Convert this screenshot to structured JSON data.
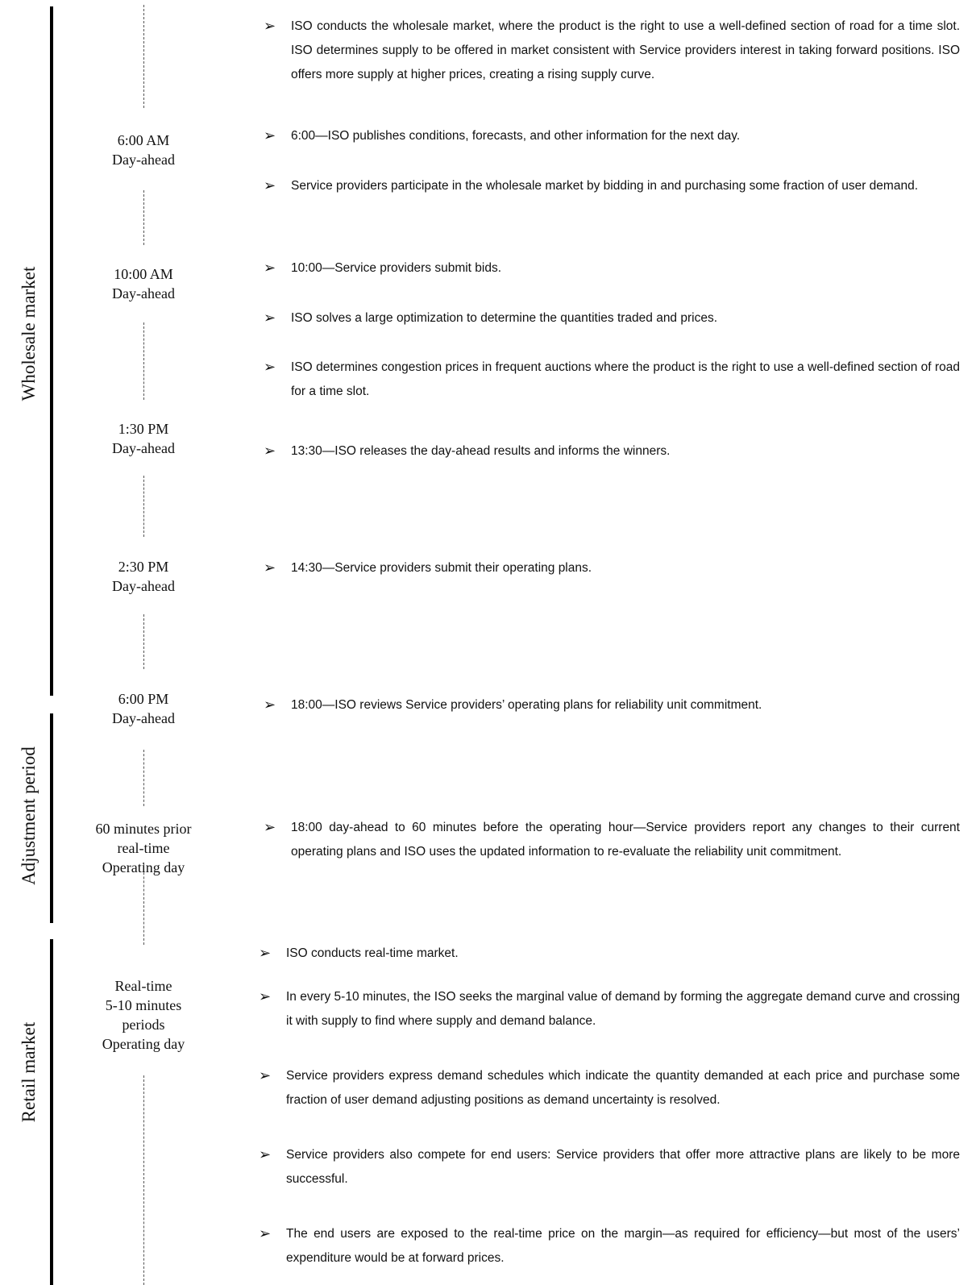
{
  "phases": [
    {
      "label": "Wholesale market"
    },
    {
      "label": "Adjustment period"
    },
    {
      "label": "Retail market"
    }
  ],
  "times": [
    {
      "lines": [
        "6:00 AM",
        "Day-ahead"
      ]
    },
    {
      "lines": [
        "10:00 AM",
        "Day-ahead"
      ]
    },
    {
      "lines": [
        "1:30 PM",
        "Day-ahead"
      ]
    },
    {
      "lines": [
        "2:30 PM",
        "Day-ahead"
      ]
    },
    {
      "lines": [
        "6:00 PM",
        "Day-ahead"
      ]
    },
    {
      "lines": [
        "60 minutes prior",
        "real-time",
        "Operating day"
      ]
    },
    {
      "lines": [
        "Real-time",
        "5-10 minutes",
        "periods",
        "Operating day"
      ]
    }
  ],
  "bullet_symbol": "➢",
  "items": [
    "ISO conducts the wholesale market, where the product is the right to use a well-defined section of road for a time slot. ISO determines supply to be offered in market consistent with Service providers interest in taking forward positions. ISO offers more supply at higher prices, creating a rising supply curve.",
    "6:00—ISO publishes conditions, forecasts, and other information for the next day.",
    "Service providers participate in the wholesale market by bidding in and purchasing some fraction of user demand.",
    "10:00—Service providers submit bids.",
    "ISO solves a large optimization to determine the quantities traded and prices.",
    "ISO determines congestion prices in frequent auctions where the product is the right to use a well-defined section of road for a time slot.",
    "13:30—ISO releases the day-ahead results and informs the winners.",
    "14:30—Service providers submit their operating plans.",
    "18:00—ISO reviews Service providers’ operating plans for reliability unit commitment.",
    "18:00 day-ahead to 60 minutes before the operating hour—Service providers report any changes to their current operating plans and ISO uses the updated information to re-evaluate the reliability unit commitment.",
    "ISO conducts real-time market.",
    "In every 5-10 minutes, the ISO seeks the marginal value of demand by forming the aggregate demand curve and crossing it with supply to find where supply and demand balance.",
    "Service providers express demand schedules which indicate the quantity demanded at each price and purchase some fraction of user demand adjusting positions as demand uncertainty is resolved.",
    "Service providers also compete for end users: Service providers that offer more attractive plans are likely to be more successful.",
    "The end users are exposed to the real-time price on the margin—as required for efficiency—but most of the users’ expenditure would be at forward prices."
  ]
}
